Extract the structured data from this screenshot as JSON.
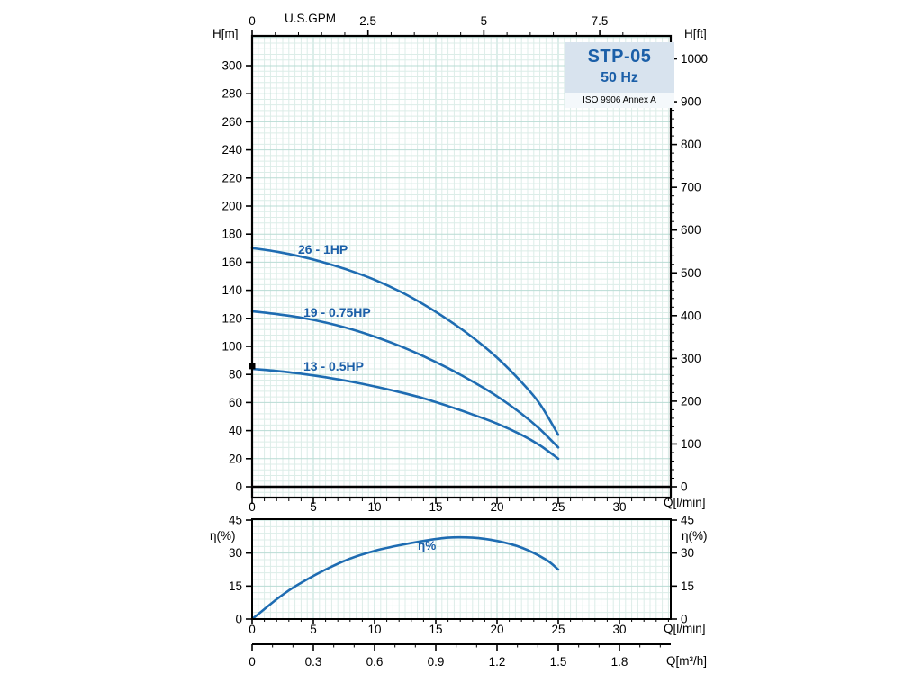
{
  "title_block": {
    "model": "STP-05",
    "frequency": "50 Hz",
    "standard": "ISO 9906 Annex A"
  },
  "accent_color": "#1b5fa8",
  "curve_color": "#1e6cb2",
  "grid_minor_color": "#dcede8",
  "grid_major_color": "#b9dcd4",
  "chart_data": [
    {
      "id": "head-curves",
      "type": "line",
      "title": "STP-05 50 Hz pump head curves",
      "xlabel": "Q[l/min]",
      "x2label": "U.S.GPM",
      "ylabel": "H[m]",
      "y2label": "H[ft]",
      "xlim": [
        0,
        34.2
      ],
      "ylim": [
        0,
        321
      ],
      "grid": true,
      "legend_position": "inline-curve-labels",
      "x_ticks": [
        0,
        5,
        10,
        15,
        20,
        25,
        30
      ],
      "x2_ticks": [
        0,
        2.5,
        5,
        7.5
      ],
      "y_ticks": [
        0,
        20,
        40,
        60,
        80,
        100,
        120,
        140,
        160,
        180,
        200,
        220,
        240,
        260,
        280,
        300
      ],
      "y2_ticks": [
        0,
        100,
        200,
        300,
        400,
        500,
        600,
        700,
        800,
        900,
        1000
      ],
      "series": [
        {
          "name": "26 - 1HP",
          "x": [
            0,
            2,
            4,
            6,
            8,
            10,
            12,
            14,
            16,
            18,
            20,
            22,
            23.5,
            25
          ],
          "y": [
            170,
            167.5,
            164,
            159.5,
            154,
            147.5,
            139.5,
            130,
            119,
            106.5,
            92,
            74.5,
            59,
            37
          ]
        },
        {
          "name": "19 - 0.75HP",
          "x": [
            0,
            2,
            4,
            6,
            8,
            10,
            12,
            14,
            16,
            18,
            20,
            22,
            23.5,
            25
          ],
          "y": [
            125,
            123,
            120.5,
            117,
            112.5,
            107,
            100.5,
            93,
            84.5,
            75,
            64.5,
            52,
            41,
            28
          ]
        },
        {
          "name": "13 - 0.5HP",
          "x": [
            0,
            2,
            4,
            6,
            8,
            10,
            12,
            14,
            16,
            18,
            20,
            22,
            23.5,
            25
          ],
          "y": [
            84,
            82.5,
            80.5,
            78,
            75,
            71.5,
            67.5,
            63,
            57.5,
            51.5,
            45,
            37,
            29.5,
            20
          ]
        }
      ]
    },
    {
      "id": "efficiency",
      "type": "line",
      "title": "Efficiency curve",
      "xlabel": "Q[l/min]",
      "x3label": "Q[m³/h]",
      "ylabel": "η(%)",
      "y2label": "η(%)",
      "xlim": [
        0,
        34.2
      ],
      "ylim": [
        0,
        45.4
      ],
      "grid": true,
      "x_ticks": [
        0,
        5,
        10,
        15,
        20,
        25,
        30
      ],
      "y_ticks": [
        0,
        15,
        30,
        45
      ],
      "m3h_ticks": [
        0,
        0.3,
        0.6,
        0.9,
        1.2,
        1.5,
        1.8
      ],
      "series": [
        {
          "name": "η%",
          "x": [
            0,
            1,
            2,
            3,
            4,
            6,
            8,
            10,
            12,
            14,
            16,
            18,
            20,
            22,
            24,
            25
          ],
          "y": [
            0,
            4.5,
            9,
            13,
            16.5,
            22.5,
            27.5,
            31,
            33.5,
            35.5,
            37,
            37,
            35.5,
            32.5,
            27,
            22.5
          ]
        }
      ]
    }
  ]
}
